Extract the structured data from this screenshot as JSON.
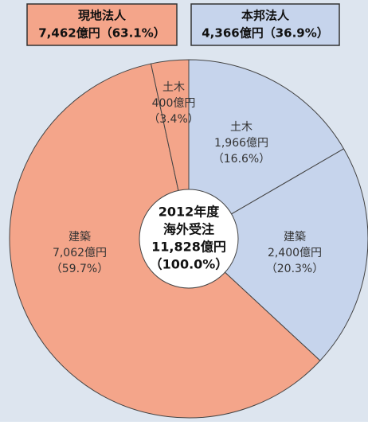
{
  "chart_data": {
    "type": "pie",
    "groups": [
      {
        "name": "現地法人",
        "value_label": "7,462億円（63.1%）",
        "color": "#f4a58a"
      },
      {
        "name": "本邦法人",
        "value_label": "4,366億円（36.9%）",
        "color": "#c6d4ec"
      }
    ],
    "center_text": [
      "2012年度",
      "海外受注",
      "11,828億円",
      "（100.0%）"
    ],
    "categories": [
      "土木",
      "建築",
      "建築",
      "土木"
    ],
    "values": [
      1966,
      2400,
      7062,
      400
    ],
    "value_labels": [
      "1,966億円",
      "2,400億円",
      "7,062億円",
      "400億円"
    ],
    "percent_labels": [
      "（16.6%）",
      "（20.3%）",
      "（59.7%）",
      "（3.4%）"
    ],
    "colors": [
      "#c6d4ec",
      "#c6d4ec",
      "#f4a58a",
      "#f4a58a"
    ]
  }
}
